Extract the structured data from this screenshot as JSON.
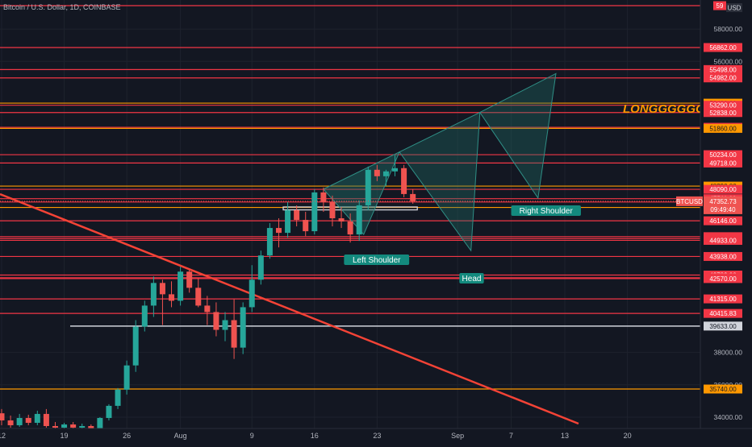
{
  "header": {
    "title": "Bitcoin / U.S. Dollar, 1D, COINBASE",
    "currency": "USD"
  },
  "chart_data": {
    "type": "candlestick",
    "symbol": "BTCUSD",
    "interval": "1D",
    "exchange": "COINBASE",
    "ylim": [
      33300,
      59800
    ],
    "current_price": {
      "label": "47352.73",
      "countdown": "09:49:40",
      "value": 47352.73
    },
    "x_ticks": [
      {
        "label": "12",
        "idx": 0
      },
      {
        "label": "19",
        "idx": 7
      },
      {
        "label": "26",
        "idx": 14
      },
      {
        "label": "Aug",
        "idx": 20
      },
      {
        "label": "9",
        "idx": 28
      },
      {
        "label": "16",
        "idx": 35
      },
      {
        "label": "23",
        "idx": 42
      },
      {
        "label": "Sep",
        "idx": 51
      },
      {
        "label": "7",
        "idx": 57
      },
      {
        "label": "13",
        "idx": 63
      },
      {
        "label": "20",
        "idx": 70
      }
    ],
    "y_axis_plain_ticks": [
      "58000.00",
      "56000.00",
      "38000.00",
      "36000.00",
      "34000.00"
    ],
    "levels": [
      {
        "label": "59",
        "value": 59450,
        "kind": "red",
        "clipped": true
      },
      {
        "label": "56862.00",
        "value": 56862,
        "kind": "red"
      },
      {
        "label": "55498.00",
        "value": 55498,
        "kind": "red"
      },
      {
        "label": "54982.00",
        "value": 54982,
        "kind": "red"
      },
      {
        "label": "53420.00",
        "value": 53420,
        "kind": "orange"
      },
      {
        "label": "53290.00",
        "value": 53290,
        "kind": "red"
      },
      {
        "label": "52838.00",
        "value": 52838,
        "kind": "red"
      },
      {
        "label": "51926.00",
        "value": 51926,
        "kind": "red"
      },
      {
        "label": "51860.00",
        "value": 51860,
        "kind": "orange"
      },
      {
        "label": "50234.00",
        "value": 50234,
        "kind": "red"
      },
      {
        "label": "49718.00",
        "value": 49718,
        "kind": "red"
      },
      {
        "label": "48290.00",
        "value": 48290,
        "kind": "orange"
      },
      {
        "label": "48090.00",
        "value": 48090,
        "kind": "red"
      },
      {
        "label": "47511.00",
        "value": 47511,
        "kind": "red"
      },
      {
        "label": "47307.00",
        "value": 47307,
        "kind": "red"
      },
      {
        "label": "46970.00",
        "value": 46970,
        "kind": "orange"
      },
      {
        "label": "46146.00",
        "value": 46146,
        "kind": "red"
      },
      {
        "label": "45163.00",
        "value": 45163,
        "kind": "red"
      },
      {
        "label": "45042.00",
        "value": 45042,
        "kind": "red"
      },
      {
        "label": "44933.00",
        "value": 44933,
        "kind": "red"
      },
      {
        "label": "43938.00",
        "value": 43938,
        "kind": "red"
      },
      {
        "label": "42789.00",
        "value": 42789,
        "kind": "red"
      },
      {
        "label": "42623.00",
        "value": 42623,
        "kind": "red"
      },
      {
        "label": "42570.00",
        "value": 42570,
        "kind": "red"
      },
      {
        "label": "41315.00",
        "value": 41315,
        "kind": "red"
      },
      {
        "label": "40415.83",
        "value": 40415.83,
        "kind": "red"
      },
      {
        "label": "39633.00",
        "value": 39633,
        "kind": "white"
      },
      {
        "label": "35740.00",
        "value": 35740,
        "kind": "orange"
      }
    ],
    "candles": [
      {
        "o": 34240,
        "h": 34500,
        "l": 33500,
        "c": 33800
      },
      {
        "o": 33800,
        "h": 34100,
        "l": 33350,
        "c": 33500
      },
      {
        "o": 33500,
        "h": 34200,
        "l": 33400,
        "c": 33950
      },
      {
        "o": 33950,
        "h": 34150,
        "l": 33500,
        "c": 33650
      },
      {
        "o": 33650,
        "h": 34400,
        "l": 33500,
        "c": 34200
      },
      {
        "o": 34200,
        "h": 34500,
        "l": 33350,
        "c": 33450
      },
      {
        "o": 33450,
        "h": 33700,
        "l": 33100,
        "c": 33350
      },
      {
        "o": 33350,
        "h": 33650,
        "l": 33150,
        "c": 33550
      },
      {
        "o": 33550,
        "h": 33700,
        "l": 33200,
        "c": 33350
      },
      {
        "o": 33350,
        "h": 33600,
        "l": 33150,
        "c": 33450
      },
      {
        "o": 33450,
        "h": 33550,
        "l": 33100,
        "c": 33300
      },
      {
        "o": 33300,
        "h": 34000,
        "l": 33200,
        "c": 33950
      },
      {
        "o": 33950,
        "h": 34800,
        "l": 33800,
        "c": 34700
      },
      {
        "o": 34700,
        "h": 35800,
        "l": 34500,
        "c": 35700
      },
      {
        "o": 35700,
        "h": 37500,
        "l": 35400,
        "c": 37200
      },
      {
        "o": 37200,
        "h": 40000,
        "l": 36800,
        "c": 39600
      },
      {
        "o": 39600,
        "h": 41200,
        "l": 39300,
        "c": 40900
      },
      {
        "o": 40900,
        "h": 42700,
        "l": 40200,
        "c": 42300
      },
      {
        "o": 42300,
        "h": 42500,
        "l": 39700,
        "c": 41600
      },
      {
        "o": 41600,
        "h": 42400,
        "l": 40800,
        "c": 41200
      },
      {
        "o": 41200,
        "h": 43300,
        "l": 40900,
        "c": 43000
      },
      {
        "o": 43000,
        "h": 43100,
        "l": 41700,
        "c": 42000
      },
      {
        "o": 42000,
        "h": 42600,
        "l": 40800,
        "c": 40900
      },
      {
        "o": 40900,
        "h": 41500,
        "l": 39700,
        "c": 40500
      },
      {
        "o": 40500,
        "h": 41100,
        "l": 39000,
        "c": 39400
      },
      {
        "o": 39400,
        "h": 40500,
        "l": 38700,
        "c": 40000
      },
      {
        "o": 40000,
        "h": 41300,
        "l": 37600,
        "c": 38300
      },
      {
        "o": 38300,
        "h": 41100,
        "l": 37900,
        "c": 40800
      },
      {
        "o": 40800,
        "h": 43400,
        "l": 40500,
        "c": 42500
      },
      {
        "o": 42500,
        "h": 44300,
        "l": 42200,
        "c": 44000
      },
      {
        "o": 44000,
        "h": 46000,
        "l": 43800,
        "c": 45700
      },
      {
        "o": 45700,
        "h": 46300,
        "l": 44500,
        "c": 45400
      },
      {
        "o": 45400,
        "h": 47300,
        "l": 45100,
        "c": 46800
      },
      {
        "o": 46800,
        "h": 47100,
        "l": 45800,
        "c": 46200
      },
      {
        "o": 46200,
        "h": 46700,
        "l": 45200,
        "c": 45500
      },
      {
        "o": 45500,
        "h": 48100,
        "l": 45300,
        "c": 47900
      },
      {
        "o": 47900,
        "h": 48200,
        "l": 46700,
        "c": 47300
      },
      {
        "o": 47300,
        "h": 47700,
        "l": 45800,
        "c": 46300
      },
      {
        "o": 46300,
        "h": 47000,
        "l": 45700,
        "c": 46100
      },
      {
        "o": 46100,
        "h": 46600,
        "l": 44800,
        "c": 45300
      },
      {
        "o": 45300,
        "h": 47400,
        "l": 44900,
        "c": 47100
      },
      {
        "o": 47100,
        "h": 49500,
        "l": 46800,
        "c": 49300
      },
      {
        "o": 49300,
        "h": 49600,
        "l": 48600,
        "c": 48900
      },
      {
        "o": 48900,
        "h": 49300,
        "l": 48300,
        "c": 49200
      },
      {
        "o": 49200,
        "h": 50200,
        "l": 48900,
        "c": 49400
      },
      {
        "o": 49400,
        "h": 49600,
        "l": 47600,
        "c": 47800
      },
      {
        "o": 47800,
        "h": 48100,
        "l": 47200,
        "c": 47352.73
      }
    ],
    "annotations": {
      "left_shoulder": "Left Shoulder",
      "head": "Head",
      "right_shoulder": "Right Shoulder",
      "longggggg": "LONGGGGGG"
    },
    "colors": {
      "up": "#26a69a",
      "down": "#ef5350",
      "level_red": "#f23645",
      "level_orange": "#ff9800",
      "trendline": "#f44336",
      "pattern_fill": "#1f6f68",
      "label_teal": "#138a7e",
      "background": "#131722"
    }
  }
}
